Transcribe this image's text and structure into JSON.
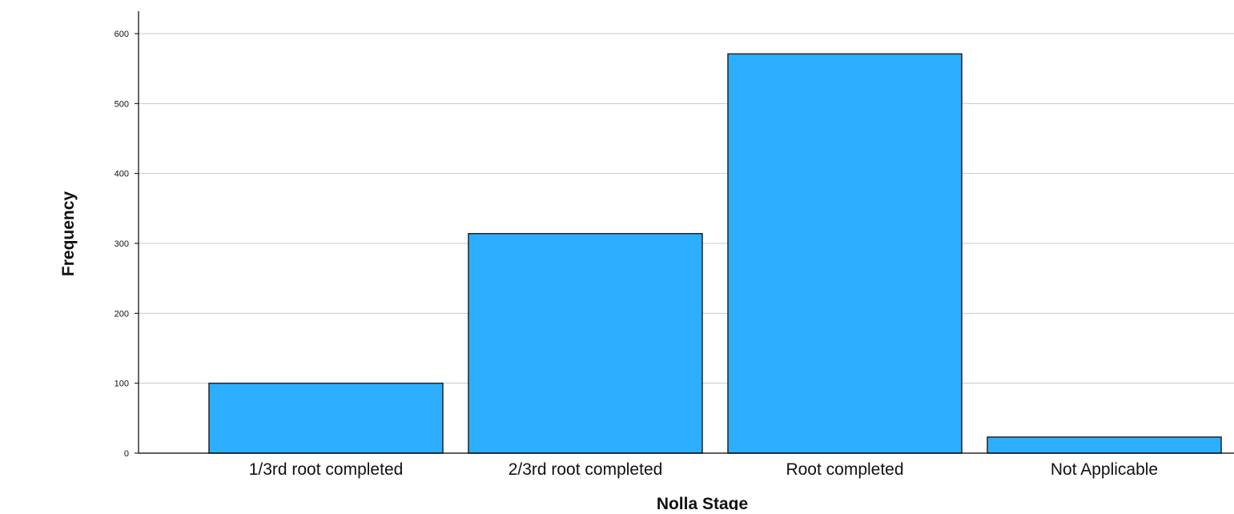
{
  "chart_data": {
    "type": "bar",
    "categories": [
      "1/3rd root completed",
      "2/3rd root completed",
      "Root completed",
      "Not Applicable"
    ],
    "values": [
      100,
      314,
      571,
      23
    ],
    "xlabel": "Nolla Stage",
    "ylabel": "Frequency",
    "ylim": [
      0,
      600
    ],
    "yticks": [
      0,
      100,
      200,
      300,
      400,
      500,
      600
    ],
    "grid": true,
    "bar_color": "#2eaefe",
    "bar_edge_color": "#222222"
  }
}
